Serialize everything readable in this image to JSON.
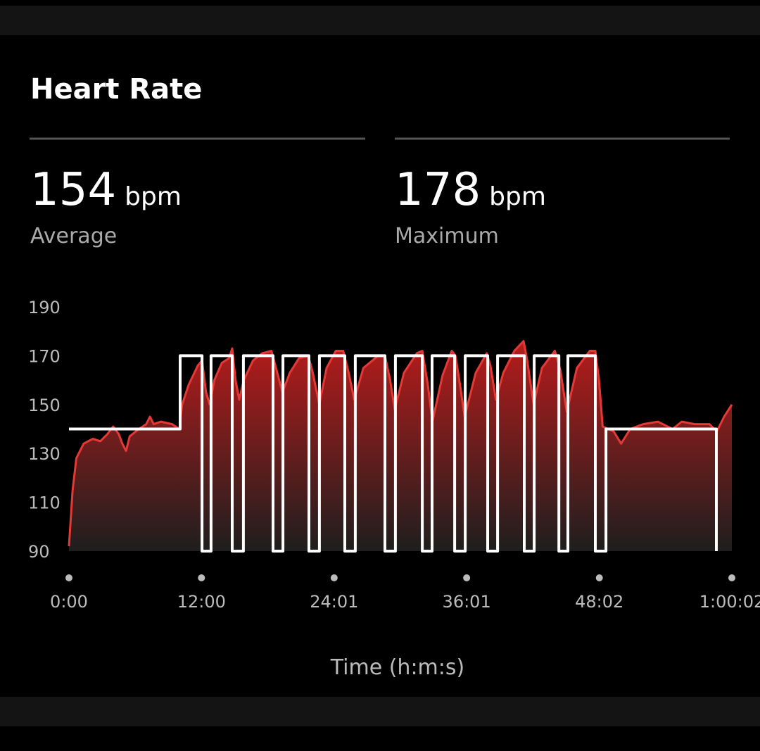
{
  "header": {
    "title": "Heart Rate"
  },
  "stats": [
    {
      "value": "154",
      "unit": "bpm",
      "label": "Average"
    },
    {
      "value": "178",
      "unit": "bpm",
      "label": "Maximum"
    }
  ],
  "chart_data": {
    "type": "area",
    "x_label": "Time (h:m:s)",
    "xlim": [
      0,
      3602
    ],
    "xticks": [
      {
        "value": 0,
        "label": "0:00"
      },
      {
        "value": 720,
        "label": "12:00"
      },
      {
        "value": 1441,
        "label": "24:01"
      },
      {
        "value": 2161,
        "label": "36:01"
      },
      {
        "value": 2882,
        "label": "48:02"
      },
      {
        "value": 3602,
        "label": "1:00:02"
      }
    ],
    "ylim": [
      90,
      190
    ],
    "yticks": [
      90,
      110,
      130,
      150,
      170,
      190
    ],
    "series": [
      {
        "name": "heart-rate",
        "color": "#e53935",
        "x": [
          0,
          20,
          40,
          80,
          130,
          170,
          210,
          240,
          270,
          290,
          310,
          330,
          380,
          420,
          440,
          460,
          500,
          560,
          600,
          615,
          650,
          700,
          723,
          745,
          765,
          790,
          830,
          870,
          887,
          905,
          925,
          950,
          1000,
          1050,
          1100,
          1125,
          1160,
          1200,
          1250,
          1300,
          1325,
          1360,
          1400,
          1450,
          1490,
          1520,
          1550,
          1600,
          1680,
          1717,
          1745,
          1770,
          1820,
          1890,
          1920,
          1950,
          1975,
          2030,
          2080,
          2100,
          2125,
          2150,
          2210,
          2270,
          2290,
          2320,
          2360,
          2420,
          2470,
          2490,
          2525,
          2570,
          2640,
          2670,
          2705,
          2760,
          2830,
          2860,
          2880,
          2900,
          2960,
          3000,
          3050,
          3120,
          3200,
          3280,
          3330,
          3400,
          3480,
          3520,
          3560,
          3602
        ],
        "values": [
          92,
          115,
          128,
          134,
          136,
          135,
          138,
          141,
          138,
          134,
          131,
          137,
          140,
          142,
          145,
          142,
          143,
          142,
          140,
          150,
          158,
          166,
          168,
          155,
          150,
          160,
          167,
          169,
          173,
          160,
          152,
          160,
          168,
          171,
          172,
          165,
          155,
          163,
          169,
          170,
          163,
          150,
          165,
          172,
          172,
          163,
          152,
          165,
          170,
          170,
          160,
          148,
          163,
          171,
          172,
          158,
          143,
          162,
          172,
          170,
          158,
          145,
          163,
          171,
          166,
          152,
          163,
          172,
          176,
          168,
          150,
          165,
          172,
          164,
          147,
          165,
          172,
          172,
          160,
          141,
          139,
          134,
          140,
          142,
          143,
          140,
          143,
          142,
          142,
          139,
          145,
          150
        ]
      },
      {
        "name": "target",
        "color": "#ffffff",
        "x": [
          0,
          604,
          604,
          723,
          723,
          772,
          772,
          887,
          887,
          948,
          948,
          1109,
          1109,
          1163,
          1163,
          1304,
          1304,
          1361,
          1361,
          1499,
          1499,
          1556,
          1556,
          1717,
          1717,
          1774,
          1774,
          1920,
          1920,
          1973,
          1973,
          2096,
          2096,
          2153,
          2153,
          2275,
          2275,
          2329,
          2329,
          2474,
          2474,
          2528,
          2528,
          2662,
          2662,
          2711,
          2711,
          2860,
          2860,
          2918,
          2918,
          3518,
          3518
        ],
        "values": [
          140,
          140,
          170,
          170,
          90,
          90,
          170,
          170,
          90,
          90,
          170,
          170,
          90,
          90,
          170,
          170,
          90,
          90,
          170,
          170,
          90,
          90,
          170,
          170,
          90,
          90,
          170,
          170,
          90,
          90,
          170,
          170,
          90,
          90,
          170,
          170,
          90,
          90,
          170,
          170,
          90,
          90,
          170,
          170,
          90,
          90,
          170,
          170,
          90,
          90,
          140,
          140,
          90
        ]
      }
    ]
  }
}
